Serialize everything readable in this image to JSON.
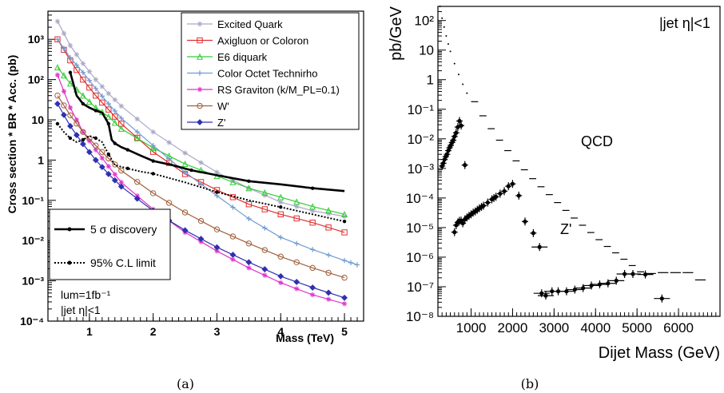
{
  "chart_data": [
    {
      "type": "line",
      "panel_label": "(a)",
      "xlabel": "Mass (TeV)",
      "ylabel": "Cross section * BR * Acc. (pb)",
      "xlim": [
        0.35,
        5.3
      ],
      "ylim": [
        0.0001,
        5000
      ],
      "yscale": "log",
      "x_ticks": [
        "1",
        "2",
        "3",
        "4",
        "5"
      ],
      "x_tick_values": [
        1,
        2,
        3,
        4,
        5
      ],
      "y_ticks": [
        "10⁻⁴",
        "10⁻³",
        "10⁻²",
        "10⁻¹",
        "1",
        "10",
        "10²",
        "10³"
      ],
      "y_tick_values": [
        0.0001,
        0.001,
        0.01,
        0.1,
        1,
        10,
        100,
        1000
      ],
      "legend_position": "top-right",
      "annotations": [
        "lum=1fb⁻¹",
        "|jet η|<1"
      ],
      "series": [
        {
          "name": "Excited Quark",
          "color": "#a9a9c8",
          "marker": "star",
          "x": [
            0.5,
            0.7,
            0.9,
            1.1,
            1.3,
            1.5,
            2.0,
            2.5,
            3.0,
            3.5,
            4.0,
            4.5,
            5.0
          ],
          "y": [
            2800,
            700,
            250,
            100,
            45,
            22,
            5,
            1.5,
            0.5,
            0.2,
            0.09,
            0.055,
            0.04
          ]
        },
        {
          "name": "Axigluon or Coloron",
          "color": "#e03030",
          "marker": "square",
          "x": [
            0.5,
            0.7,
            0.9,
            1.1,
            1.3,
            1.5,
            2.0,
            2.5,
            3.0,
            3.5,
            4.0,
            4.5,
            5.0
          ],
          "y": [
            1000,
            300,
            100,
            40,
            18,
            8,
            1.6,
            0.45,
            0.18,
            0.08,
            0.045,
            0.028,
            0.016
          ]
        },
        {
          "name": "E6 diquark",
          "color": "#33cc33",
          "marker": "triangle",
          "x": [
            0.5,
            0.7,
            0.9,
            1.1,
            1.3,
            1.5,
            2.0,
            2.5,
            3.0,
            3.5,
            4.0,
            4.5,
            5.0
          ],
          "y": [
            200,
            80,
            40,
            20,
            12,
            6,
            2,
            0.8,
            0.4,
            0.2,
            0.12,
            0.07,
            0.045
          ]
        },
        {
          "name": "Color Octet Technirho",
          "color": "#6f9bd1",
          "marker": "plus",
          "x": [
            0.5,
            0.7,
            0.9,
            1.1,
            1.3,
            1.5,
            2.0,
            2.5,
            3.0,
            3.5,
            4.0,
            4.5,
            5.0,
            5.2
          ],
          "y": [
            1000,
            350,
            150,
            60,
            25,
            11,
            2.3,
            0.5,
            0.13,
            0.035,
            0.012,
            0.006,
            0.0032,
            0.0025
          ]
        },
        {
          "name": "RS Graviton (k/M_PL=0.1)",
          "color": "#e033cc",
          "marker": "star",
          "x": [
            0.5,
            0.7,
            0.9,
            1.1,
            1.3,
            1.5,
            2.0,
            2.5,
            3.0,
            3.5,
            4.0,
            4.5,
            5.0
          ],
          "y": [
            130,
            20,
            5,
            1.8,
            0.7,
            0.28,
            0.06,
            0.016,
            0.0055,
            0.0021,
            0.0009,
            0.00045,
            0.00027
          ]
        },
        {
          "name": "W'",
          "color": "#a0603c",
          "marker": "circle",
          "x": [
            0.5,
            0.7,
            0.9,
            1.1,
            1.3,
            1.5,
            2.0,
            2.5,
            3.0,
            3.5,
            4.0,
            4.5,
            5.0
          ],
          "y": [
            40,
            13,
            5,
            2.3,
            1.1,
            0.55,
            0.15,
            0.05,
            0.019,
            0.0085,
            0.004,
            0.0021,
            0.0012
          ]
        },
        {
          "name": "Z'",
          "color": "#3030b0",
          "marker": "diamond",
          "x": [
            0.5,
            0.7,
            0.9,
            1.1,
            1.3,
            1.5,
            2.0,
            2.5,
            3.0,
            3.5,
            4.0,
            4.5,
            5.0
          ],
          "y": [
            25,
            7,
            2.5,
            1,
            0.45,
            0.22,
            0.055,
            0.018,
            0.0068,
            0.0029,
            0.0013,
            0.00068,
            0.00038
          ]
        },
        {
          "name": "5 σ discovery",
          "color": "#000000",
          "marker": "dot",
          "style": "thick",
          "x": [
            0.7,
            0.8,
            0.9,
            1.0,
            1.1,
            1.2,
            1.3,
            1.35,
            1.4,
            1.5,
            1.6,
            1.8,
            2.0,
            2.3,
            2.6,
            3.0,
            3.5,
            4.0,
            4.5,
            5.0
          ],
          "y": [
            150,
            40,
            25,
            20,
            17,
            15,
            8,
            3.2,
            2.6,
            2.1,
            1.8,
            1.3,
            0.95,
            0.75,
            0.56,
            0.42,
            0.3,
            0.25,
            0.2,
            0.17
          ]
        },
        {
          "name": "95% C.L limit",
          "color": "#000000",
          "marker": "dot",
          "style": "dotted",
          "x": [
            0.5,
            0.6,
            0.7,
            0.8,
            0.9,
            1.0,
            1.1,
            1.2,
            1.3,
            1.4,
            1.6,
            1.8,
            2.0,
            2.5,
            3.0,
            3.5,
            4.0,
            4.5,
            5.0
          ],
          "y": [
            8,
            5,
            3.5,
            2.8,
            3.2,
            4,
            3.5,
            2.8,
            1.4,
            0.75,
            0.62,
            0.52,
            0.46,
            0.28,
            0.16,
            0.1,
            0.068,
            0.045,
            0.03
          ]
        }
      ]
    },
    {
      "type": "scatter",
      "panel_label": "(b)",
      "xlabel": "Dijet Mass (GeV)",
      "ylabel": "pb/GeV",
      "xlim": [
        200,
        7000
      ],
      "ylim": [
        1e-08,
        300
      ],
      "yscale": "log",
      "x_ticks": [
        "1000",
        "2000",
        "3000",
        "4000",
        "5000",
        "6000"
      ],
      "x_tick_values": [
        1000,
        2000,
        3000,
        4000,
        5000,
        6000
      ],
      "y_ticks": [
        "10⁻⁸",
        "10⁻⁷",
        "10⁻⁶",
        "10⁻⁵",
        "10⁻⁴",
        "10⁻³",
        "10⁻²",
        "10⁻¹",
        "1",
        "10",
        "10²"
      ],
      "y_tick_values": [
        1e-08,
        1e-07,
        1e-06,
        1e-05,
        0.0001,
        0.001,
        0.01,
        0.1,
        1,
        10,
        100
      ],
      "annotations": [
        "|jet η|<1",
        "QCD",
        "Z'"
      ],
      "series": [
        {
          "name": "QCD",
          "style": "bins",
          "x": [
            250,
            300,
            350,
            400,
            450,
            500,
            600,
            700,
            800,
            900,
            1000,
            1200,
            1400,
            1600,
            1800,
            2000,
            2200,
            2400,
            2600,
            2800,
            3000,
            3200,
            3400,
            3600,
            3800,
            4000,
            4200,
            4400,
            4600,
            4800,
            5000,
            5200,
            5500,
            5800,
            6100,
            6400
          ],
          "y": [
            300,
            120,
            60,
            30,
            16,
            9,
            3.5,
            1.5,
            0.7,
            0.35,
            0.18,
            0.06,
            0.022,
            0.009,
            0.004,
            0.0018,
            0.0009,
            0.00045,
            0.00024,
            0.00013,
            7e-05,
            3.8e-05,
            2.1e-05,
            1.2e-05,
            6.8e-06,
            3.9e-06,
            2.3e-06,
            1.4e-06,
            8.5e-07,
            5.2e-07,
            3.2e-07,
            2.8e-07,
            3e-07,
            3e-07,
            3e-07,
            1.7e-07
          ]
        },
        {
          "name": "Z' signal",
          "style": "points",
          "x": [
            300,
            330,
            360,
            390,
            420,
            450,
            480,
            510,
            540,
            570,
            600,
            640,
            680,
            720,
            760,
            850,
            600,
            640,
            680,
            720,
            760,
            800,
            850,
            900,
            950,
            1000,
            1050,
            1100,
            1150,
            1200,
            1250,
            1300,
            1400,
            1500,
            1550,
            1600,
            1700,
            1800,
            1900,
            2000,
            2150,
            2300,
            2500,
            2650,
            2700,
            2800,
            2950,
            3100,
            3300,
            3500,
            3700,
            3900,
            4100,
            4300,
            4500,
            4700,
            4900,
            5200,
            5600
          ],
          "y": [
            0.0012,
            0.0015,
            0.002,
            0.0025,
            0.003,
            0.004,
            0.005,
            0.006,
            0.0075,
            0.009,
            0.012,
            0.016,
            0.025,
            0.04,
            0.028,
            0.0013,
            7e-06,
            1.2e-05,
            1.5e-05,
            1.7e-05,
            1.7e-05,
            1.4e-05,
            1.9e-05,
            2.2e-05,
            2.5e-05,
            2.8e-05,
            3.2e-05,
            3.5e-05,
            4e-05,
            4.5e-05,
            5e-05,
            5.5e-05,
            7e-05,
            9e-05,
            0.0001,
            0.00011,
            0.00014,
            0.00017,
            0.00025,
            0.0003,
            0.00012,
            1.6e-05,
            6.5e-06,
            2.2e-06,
            6e-08,
            5e-08,
            7e-08,
            7e-08,
            7e-08,
            8e-08,
            9e-08,
            1.1e-07,
            1.2e-07,
            1.3e-07,
            1.6e-07,
            2.7e-07,
            2.7e-07,
            2.6e-07,
            4e-08
          ]
        }
      ]
    }
  ]
}
